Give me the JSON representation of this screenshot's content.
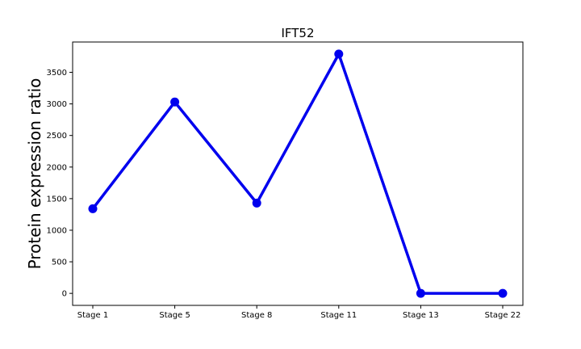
{
  "chart_data": {
    "type": "line",
    "title": "IFT52",
    "xlabel": "",
    "ylabel": "Protein expression ratio",
    "categories": [
      "Stage 1",
      "Stage 5",
      "Stage 8",
      "Stage 11",
      "Stage 13",
      "Stage 22"
    ],
    "series": [
      {
        "name": "IFT52",
        "values": [
          1340,
          3030,
          1430,
          3790,
          0,
          0
        ],
        "color": "#0000ee"
      }
    ],
    "yticks": [
      0,
      500,
      1000,
      1500,
      2000,
      2500,
      3000,
      3500
    ],
    "ylim": [
      -190,
      3980
    ],
    "grid": false
  }
}
